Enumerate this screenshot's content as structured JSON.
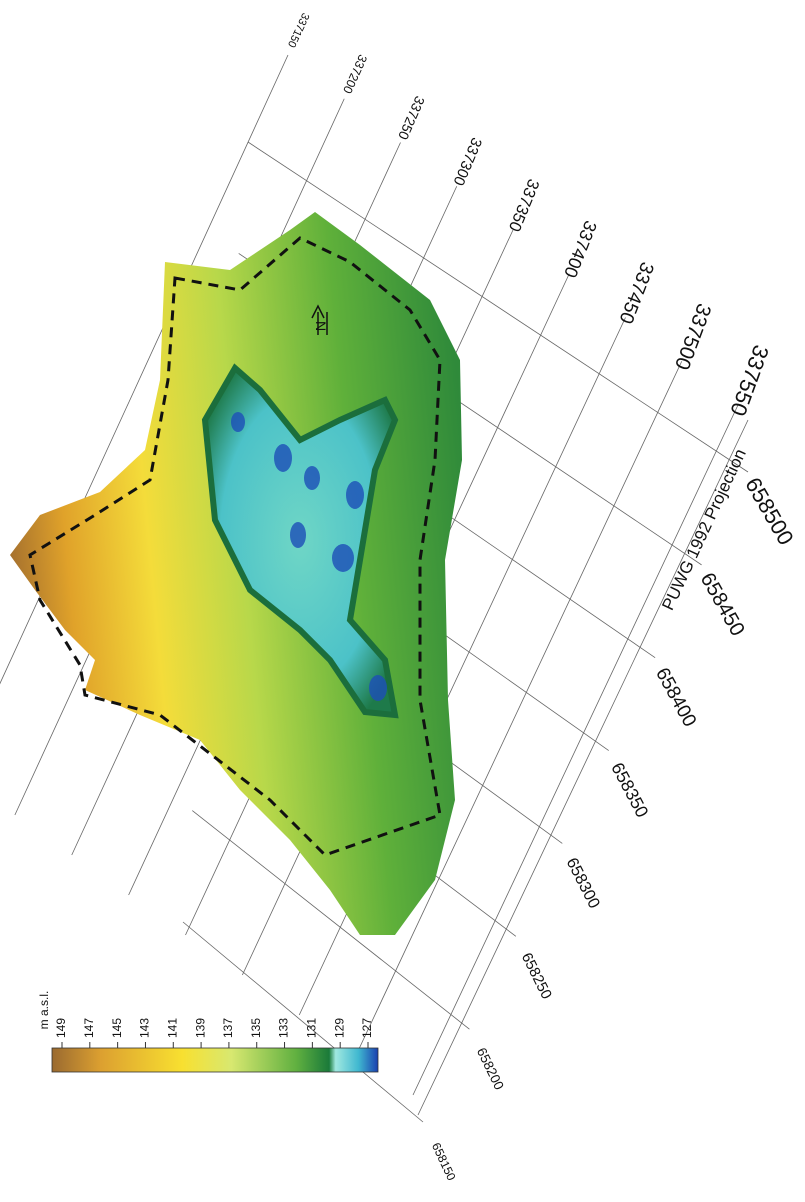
{
  "map": {
    "top_axis": [
      "337150",
      "337200",
      "337250",
      "337300",
      "337350",
      "337400",
      "337450",
      "337500",
      "337550"
    ],
    "right_axis": [
      "658500",
      "658450",
      "658400",
      "658350",
      "658300",
      "658250",
      "658200",
      "658150"
    ],
    "projection": "PUWG 1992 Projection",
    "north": "N",
    "legend": {
      "title": "m a.s.l.",
      "ticks": [
        "149",
        "147",
        "145",
        "143",
        "141",
        "139",
        "137",
        "135",
        "133",
        "131",
        "129",
        "127"
      ]
    }
  }
}
